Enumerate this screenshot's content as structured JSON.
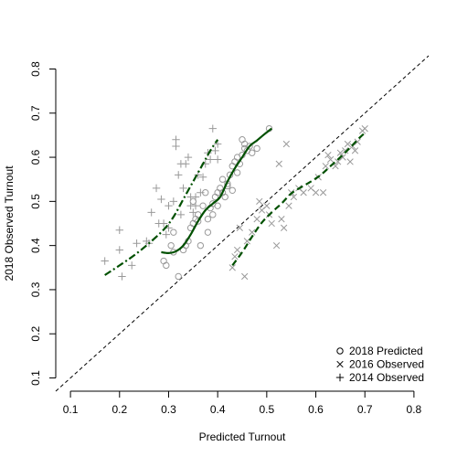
{
  "chart_data": {
    "type": "scatter",
    "title": "",
    "xlabel": "Predicted Turnout",
    "ylabel": "2018 Observed Turnout",
    "xlim": [
      0.07,
      0.83
    ],
    "ylim": [
      0.07,
      0.83
    ],
    "x_ticks": [
      0.1,
      0.2,
      0.3,
      0.4,
      0.5,
      0.6,
      0.7,
      0.8
    ],
    "y_ticks": [
      0.1,
      0.2,
      0.3,
      0.4,
      0.5,
      0.6,
      0.7,
      0.8
    ],
    "x_tick_labels": [
      "0.1",
      "0.2",
      "0.3",
      "0.4",
      "0.5",
      "0.6",
      "0.7",
      "0.8"
    ],
    "y_tick_labels": [
      "0.1",
      "0.2",
      "0.3",
      "0.4",
      "0.5",
      "0.6",
      "0.7",
      "0.8"
    ],
    "grid": false,
    "legend_position": "bottom-right",
    "reference_line": {
      "style": "dashed",
      "slope": 1,
      "intercept": 0,
      "color": "#000000"
    },
    "series": [
      {
        "name": "2018 Predicted",
        "marker": "circle",
        "color": "#999999",
        "points": [
          [
            0.29,
            0.365
          ],
          [
            0.295,
            0.355
          ],
          [
            0.305,
            0.4
          ],
          [
            0.31,
            0.43
          ],
          [
            0.32,
            0.33
          ],
          [
            0.31,
            0.385
          ],
          [
            0.33,
            0.39
          ],
          [
            0.335,
            0.4
          ],
          [
            0.34,
            0.41
          ],
          [
            0.345,
            0.44
          ],
          [
            0.35,
            0.45
          ],
          [
            0.355,
            0.46
          ],
          [
            0.36,
            0.47
          ],
          [
            0.365,
            0.4
          ],
          [
            0.37,
            0.49
          ],
          [
            0.375,
            0.52
          ],
          [
            0.38,
            0.43
          ],
          [
            0.385,
            0.485
          ],
          [
            0.39,
            0.495
          ],
          [
            0.395,
            0.51
          ],
          [
            0.4,
            0.52
          ],
          [
            0.405,
            0.53
          ],
          [
            0.41,
            0.55
          ],
          [
            0.415,
            0.51
          ],
          [
            0.42,
            0.535
          ],
          [
            0.425,
            0.56
          ],
          [
            0.43,
            0.58
          ],
          [
            0.435,
            0.59
          ],
          [
            0.44,
            0.6
          ],
          [
            0.445,
            0.585
          ],
          [
            0.45,
            0.605
          ],
          [
            0.455,
            0.62
          ],
          [
            0.46,
            0.615
          ],
          [
            0.465,
            0.625
          ],
          [
            0.47,
            0.61
          ],
          [
            0.48,
            0.62
          ],
          [
            0.45,
            0.64
          ],
          [
            0.455,
            0.63
          ],
          [
            0.44,
            0.565
          ],
          [
            0.43,
            0.525
          ],
          [
            0.42,
            0.54
          ],
          [
            0.41,
            0.52
          ],
          [
            0.4,
            0.49
          ],
          [
            0.39,
            0.47
          ],
          [
            0.38,
            0.46
          ],
          [
            0.35,
            0.5
          ],
          [
            0.36,
            0.455
          ],
          [
            0.505,
            0.665
          ]
        ]
      },
      {
        "name": "2016 Observed",
        "marker": "x",
        "color": "#999999",
        "points": [
          [
            0.43,
            0.35
          ],
          [
            0.435,
            0.375
          ],
          [
            0.44,
            0.39
          ],
          [
            0.445,
            0.44
          ],
          [
            0.455,
            0.33
          ],
          [
            0.46,
            0.41
          ],
          [
            0.47,
            0.43
          ],
          [
            0.48,
            0.46
          ],
          [
            0.485,
            0.5
          ],
          [
            0.49,
            0.48
          ],
          [
            0.5,
            0.49
          ],
          [
            0.505,
            0.47
          ],
          [
            0.51,
            0.45
          ],
          [
            0.52,
            0.4
          ],
          [
            0.525,
            0.585
          ],
          [
            0.53,
            0.46
          ],
          [
            0.535,
            0.44
          ],
          [
            0.54,
            0.63
          ],
          [
            0.545,
            0.49
          ],
          [
            0.55,
            0.52
          ],
          [
            0.555,
            0.51
          ],
          [
            0.565,
            0.53
          ],
          [
            0.575,
            0.52
          ],
          [
            0.59,
            0.53
          ],
          [
            0.6,
            0.52
          ],
          [
            0.605,
            0.555
          ],
          [
            0.615,
            0.52
          ],
          [
            0.62,
            0.58
          ],
          [
            0.63,
            0.595
          ],
          [
            0.64,
            0.58
          ],
          [
            0.645,
            0.59
          ],
          [
            0.65,
            0.61
          ],
          [
            0.655,
            0.6
          ],
          [
            0.66,
            0.615
          ],
          [
            0.67,
            0.59
          ],
          [
            0.675,
            0.625
          ],
          [
            0.68,
            0.615
          ],
          [
            0.685,
            0.635
          ],
          [
            0.695,
            0.66
          ],
          [
            0.665,
            0.63
          ],
          [
            0.625,
            0.605
          ],
          [
            0.7,
            0.665
          ]
        ]
      },
      {
        "name": "2014 Observed",
        "marker": "plus",
        "color": "#999999",
        "points": [
          [
            0.17,
            0.365
          ],
          [
            0.2,
            0.39
          ],
          [
            0.2,
            0.435
          ],
          [
            0.205,
            0.33
          ],
          [
            0.225,
            0.355
          ],
          [
            0.235,
            0.405
          ],
          [
            0.255,
            0.41
          ],
          [
            0.26,
            0.405
          ],
          [
            0.265,
            0.475
          ],
          [
            0.275,
            0.53
          ],
          [
            0.28,
            0.45
          ],
          [
            0.285,
            0.505
          ],
          [
            0.29,
            0.45
          ],
          [
            0.295,
            0.425
          ],
          [
            0.3,
            0.49
          ],
          [
            0.31,
            0.5
          ],
          [
            0.315,
            0.64
          ],
          [
            0.315,
            0.625
          ],
          [
            0.32,
            0.56
          ],
          [
            0.325,
            0.47
          ],
          [
            0.33,
            0.53
          ],
          [
            0.335,
            0.585
          ],
          [
            0.34,
            0.6
          ],
          [
            0.345,
            0.49
          ],
          [
            0.35,
            0.475
          ],
          [
            0.355,
            0.51
          ],
          [
            0.36,
            0.56
          ],
          [
            0.365,
            0.52
          ],
          [
            0.37,
            0.555
          ],
          [
            0.375,
            0.585
          ],
          [
            0.38,
            0.61
          ],
          [
            0.385,
            0.595
          ],
          [
            0.39,
            0.665
          ],
          [
            0.395,
            0.615
          ],
          [
            0.4,
            0.63
          ],
          [
            0.4,
            0.595
          ],
          [
            0.355,
            0.49
          ],
          [
            0.3,
            0.44
          ],
          [
            0.345,
            0.51
          ],
          [
            0.325,
            0.585
          ]
        ]
      }
    ],
    "fit_lines": [
      {
        "series": "2014 Observed",
        "style": "dashdot",
        "color": "#005000",
        "points": [
          [
            0.17,
            0.333
          ],
          [
            0.2,
            0.355
          ],
          [
            0.23,
            0.378
          ],
          [
            0.26,
            0.405
          ],
          [
            0.29,
            0.436
          ],
          [
            0.31,
            0.465
          ],
          [
            0.33,
            0.505
          ],
          [
            0.35,
            0.545
          ],
          [
            0.37,
            0.585
          ],
          [
            0.385,
            0.615
          ],
          [
            0.4,
            0.64
          ]
        ]
      },
      {
        "series": "2018 Predicted",
        "style": "solid",
        "color": "#005000",
        "points": [
          [
            0.285,
            0.385
          ],
          [
            0.3,
            0.383
          ],
          [
            0.315,
            0.387
          ],
          [
            0.33,
            0.4
          ],
          [
            0.345,
            0.425
          ],
          [
            0.36,
            0.455
          ],
          [
            0.375,
            0.48
          ],
          [
            0.39,
            0.495
          ],
          [
            0.405,
            0.51
          ],
          [
            0.42,
            0.545
          ],
          [
            0.435,
            0.575
          ],
          [
            0.45,
            0.6
          ],
          [
            0.465,
            0.625
          ],
          [
            0.48,
            0.638
          ],
          [
            0.495,
            0.652
          ],
          [
            0.51,
            0.665
          ]
        ]
      },
      {
        "series": "2016 Observed",
        "style": "dashed",
        "color": "#005000",
        "points": [
          [
            0.43,
            0.355
          ],
          [
            0.45,
            0.385
          ],
          [
            0.47,
            0.42
          ],
          [
            0.49,
            0.452
          ],
          [
            0.51,
            0.475
          ],
          [
            0.53,
            0.495
          ],
          [
            0.55,
            0.518
          ],
          [
            0.57,
            0.532
          ],
          [
            0.59,
            0.545
          ],
          [
            0.61,
            0.56
          ],
          [
            0.63,
            0.58
          ],
          [
            0.65,
            0.6
          ],
          [
            0.67,
            0.622
          ],
          [
            0.69,
            0.645
          ],
          [
            0.7,
            0.655
          ]
        ]
      }
    ]
  }
}
